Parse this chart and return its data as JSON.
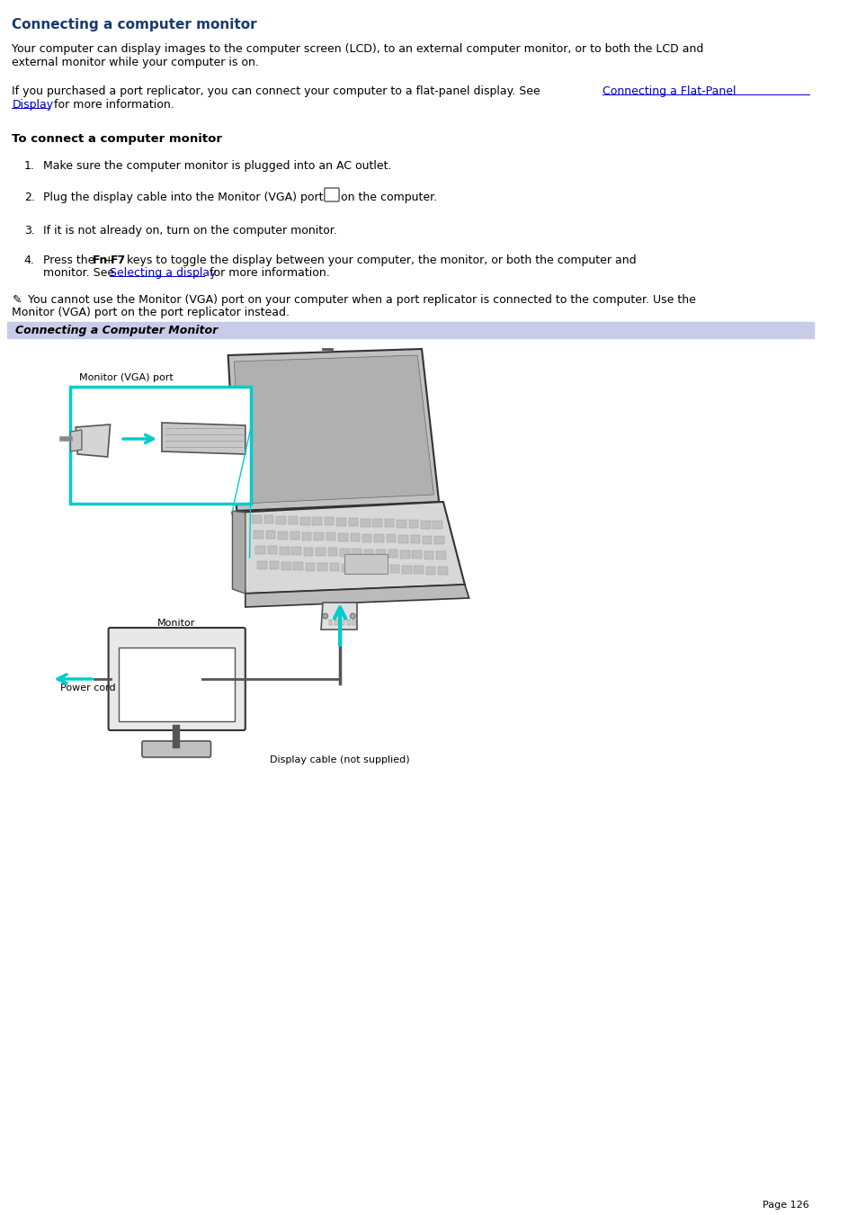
{
  "title": "Connecting a computer monitor",
  "title_color": "#1a3a6b",
  "body_text_color": "#000000",
  "link_color": "#0000cc",
  "background_color": "#ffffff",
  "page_number": "Page 126",
  "paragraph1_line1": "Your computer can display images to the computer screen (LCD), to an external computer monitor, or to both the LCD and",
  "paragraph1_line2": "external monitor while your computer is on.",
  "paragraph2_pre": "If you purchased a port replicator, you can connect your computer to a flat-panel display. See ",
  "paragraph2_link1": "Connecting a Flat-Panel",
  "paragraph2_link2": "Display",
  "paragraph2_post": " for more information.",
  "heading2": "To connect a computer monitor",
  "image_caption": "Connecting a Computer Monitor",
  "image_caption_bg": "#c8cce8",
  "font_size_title": 11,
  "font_size_body": 9,
  "font_size_small": 8,
  "font_size_caption": 9
}
